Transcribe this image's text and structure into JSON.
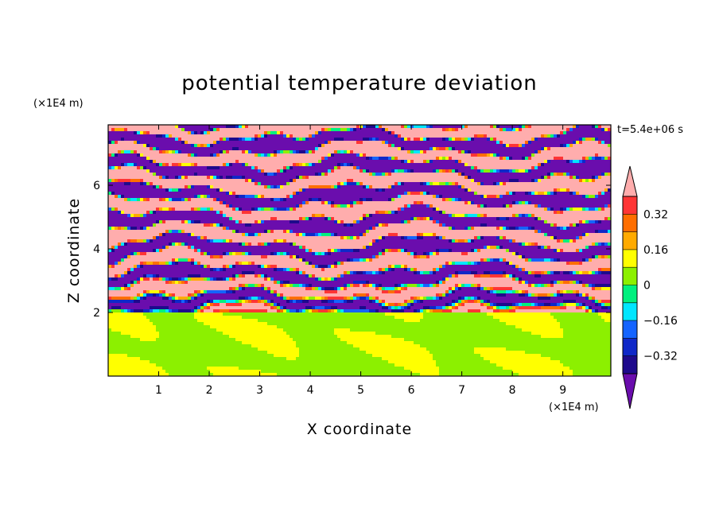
{
  "chart_data": {
    "type": "heatmap",
    "title": "potential temperature deviation",
    "xlabel": "X coordinate",
    "ylabel": "Z coordinate",
    "x_unit": "(×1E4 m)",
    "y_unit": "(×1E4 m)",
    "time_label": "t=5.4e+06 s",
    "xlim": [
      0,
      9.95
    ],
    "ylim": [
      0,
      7.9
    ],
    "x_ticks": [
      1,
      2,
      3,
      4,
      5,
      6,
      7,
      8,
      9
    ],
    "y_ticks": [
      2,
      4,
      6
    ],
    "x_tick_labels": [
      "1",
      "2",
      "3",
      "4",
      "5",
      "6",
      "7",
      "8",
      "9"
    ],
    "y_tick_labels": [
      "2",
      "4",
      "6"
    ],
    "colorbar": {
      "levels": [
        -0.4,
        -0.32,
        -0.24,
        -0.16,
        -0.08,
        0,
        0.08,
        0.16,
        0.24,
        0.32,
        0.4
      ],
      "colors": [
        "#1e0a8c",
        "#0f28c8",
        "#1464ff",
        "#00e6ff",
        "#00f07e",
        "#8cf000",
        "#ffff00",
        "#ffaa00",
        "#ff6e00",
        "#ff3535"
      ],
      "over_color": "#ffadad",
      "under_color": "#6a0dad",
      "labels": [
        "0.32",
        "0.16",
        "0",
        "−0.16",
        "−0.32"
      ],
      "label_values": [
        0.32,
        0.16,
        0,
        -0.16,
        -0.32
      ]
    },
    "field_description": {
      "lower_layer_z": [
        0,
        2.0
      ],
      "lower_layer_values": [
        0,
        0.08
      ],
      "upper_layer_z": [
        2.0,
        7.9
      ],
      "upper_layer_pattern": "alternating horizontal bands above 0.4 and below -0.4 with thin multicolored transitions"
    }
  }
}
